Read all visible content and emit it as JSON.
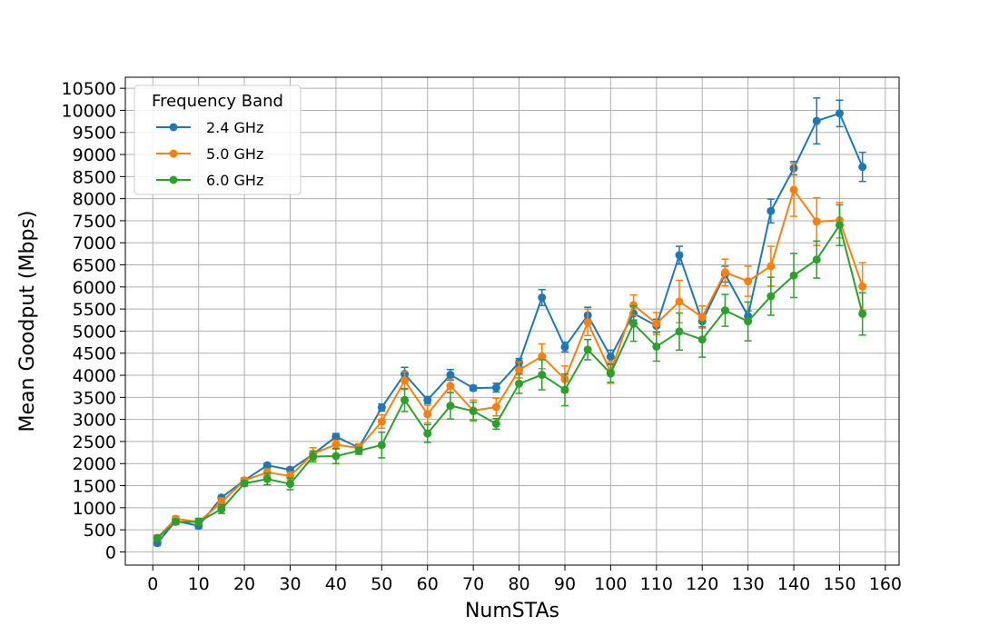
{
  "chart_data": {
    "type": "line",
    "title": "",
    "xlabel": "NumSTAs",
    "ylabel": "Mean Goodput (Mbps)",
    "xlim": [
      -6,
      163
    ],
    "ylim": [
      -300,
      10750
    ],
    "xticks": [
      0,
      10,
      20,
      30,
      40,
      50,
      60,
      70,
      80,
      90,
      100,
      110,
      120,
      130,
      140,
      150,
      160
    ],
    "yticks": [
      0,
      500,
      1000,
      1500,
      2000,
      2500,
      3000,
      3500,
      4000,
      4500,
      5000,
      5500,
      6000,
      6500,
      7000,
      7500,
      8000,
      8500,
      9000,
      9500,
      10000,
      10500
    ],
    "grid": true,
    "legend": {
      "title": "Frequency Band",
      "position": "top-left"
    },
    "x": [
      1,
      5,
      10,
      15,
      20,
      25,
      30,
      35,
      40,
      45,
      50,
      55,
      60,
      65,
      70,
      75,
      80,
      85,
      90,
      95,
      100,
      105,
      110,
      115,
      120,
      125,
      130,
      135,
      140,
      145,
      150,
      155
    ],
    "series": [
      {
        "name": "2.4 GHz",
        "color": "#1f77b4",
        "values": [
          200,
          700,
          590,
          1230,
          1620,
          1960,
          1860,
          2210,
          2610,
          2360,
          3270,
          4030,
          3440,
          4010,
          3710,
          3720,
          4290,
          5760,
          4640,
          5360,
          4420,
          5400,
          5120,
          6720,
          5220,
          6290,
          5340,
          7720,
          8690,
          9760,
          9930,
          8720
        ],
        "errors": [
          60,
          50,
          60,
          50,
          50,
          50,
          50,
          60,
          70,
          60,
          80,
          150,
          80,
          120,
          60,
          100,
          90,
          180,
          110,
          180,
          150,
          150,
          150,
          200,
          120,
          180,
          120,
          270,
          150,
          520,
          300,
          330
        ]
      },
      {
        "name": "5.0 GHz",
        "color": "#ff7f0e",
        "values": [
          320,
          750,
          680,
          1120,
          1620,
          1800,
          1720,
          2220,
          2430,
          2350,
          2950,
          3880,
          3120,
          3760,
          3200,
          3280,
          4120,
          4430,
          3910,
          5200,
          4070,
          5590,
          5170,
          5670,
          5320,
          6330,
          6130,
          6470,
          8200,
          7480,
          7510,
          6010
        ],
        "errors": [
          60,
          60,
          60,
          100,
          60,
          80,
          90,
          140,
          100,
          100,
          150,
          200,
          200,
          150,
          240,
          200,
          180,
          280,
          300,
          300,
          250,
          230,
          250,
          480,
          250,
          300,
          340,
          450,
          600,
          540,
          400,
          540
        ]
      },
      {
        "name": "6.0 GHz",
        "color": "#2ca02c",
        "values": [
          310,
          680,
          680,
          970,
          1550,
          1650,
          1540,
          2160,
          2170,
          2290,
          2420,
          3440,
          2680,
          3310,
          3190,
          2900,
          3810,
          4010,
          3670,
          4580,
          4040,
          5170,
          4650,
          4990,
          4810,
          5470,
          5220,
          5790,
          6260,
          6620,
          7400,
          5390
        ],
        "errors": [
          60,
          60,
          80,
          100,
          60,
          130,
          130,
          120,
          170,
          80,
          290,
          260,
          200,
          300,
          200,
          120,
          220,
          340,
          360,
          230,
          200,
          400,
          330,
          420,
          400,
          360,
          440,
          430,
          500,
          420,
          460,
          480
        ]
      }
    ]
  }
}
